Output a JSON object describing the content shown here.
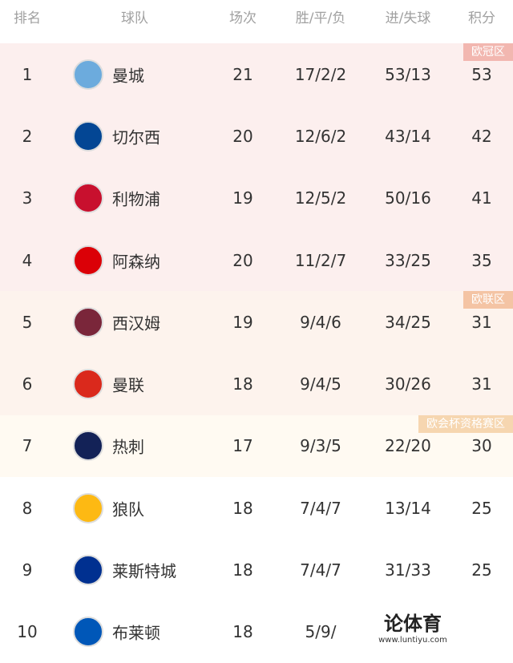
{
  "header": {
    "rank": "排名",
    "team": "球队",
    "played": "场次",
    "record": "胜/平/负",
    "goals": "进/失球",
    "points": "积分"
  },
  "groups": [
    {
      "label": "欧冠区",
      "color": "#fcefee",
      "tag_color": "#f2b7b0",
      "rows": [
        {
          "rank": 1,
          "team": "曼城",
          "played": 21,
          "record": "17/2/2",
          "goals": "53/13",
          "points": 53
        },
        {
          "rank": 2,
          "team": "切尔西",
          "played": 20,
          "record": "12/6/2",
          "goals": "43/14",
          "points": 42
        },
        {
          "rank": 3,
          "team": "利物浦",
          "played": 19,
          "record": "12/5/2",
          "goals": "50/16",
          "points": 41
        },
        {
          "rank": 4,
          "team": "阿森纳",
          "played": 20,
          "record": "11/2/7",
          "goals": "33/25",
          "points": 35
        }
      ]
    },
    {
      "label": "欧联区",
      "color": "#fdf3ed",
      "tag_color": "#f4c4a4",
      "rows": [
        {
          "rank": 5,
          "team": "西汉姆",
          "played": 19,
          "record": "9/4/6",
          "goals": "34/25",
          "points": 31
        },
        {
          "rank": 6,
          "team": "曼联",
          "played": 18,
          "record": "9/4/5",
          "goals": "30/26",
          "points": 31
        }
      ]
    },
    {
      "label": "欧会杯资格赛区",
      "color": "#fffaf2",
      "tag_color": "#f6d6b0",
      "rows": [
        {
          "rank": 7,
          "team": "热刺",
          "played": 17,
          "record": "9/3/5",
          "goals": "22/20",
          "points": 30
        }
      ]
    },
    {
      "color": "#ffffff",
      "rows": [
        {
          "rank": 8,
          "team": "狼队",
          "played": 18,
          "record": "7/4/7",
          "goals": "13/14",
          "points": 25
        },
        {
          "rank": 9,
          "team": "莱斯特城",
          "played": 18,
          "record": "7/4/7",
          "goals": "31/33",
          "points": 25
        },
        {
          "rank": 10,
          "team": "布莱顿",
          "played": 18,
          "record": "5/9/"
        }
      ]
    }
  ],
  "watermark": {
    "brand": "论体育",
    "url": "www.luntiyu.com"
  }
}
